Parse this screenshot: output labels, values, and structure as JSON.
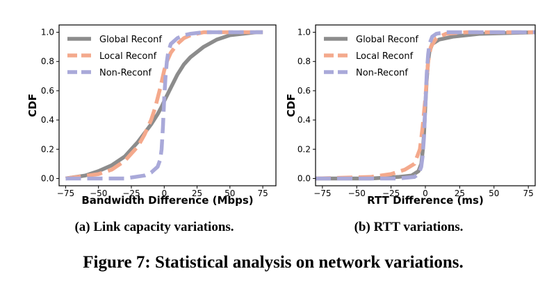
{
  "figure_caption": "Figure 7: Statistical analysis on network variations.",
  "chart_data": [
    {
      "type": "line",
      "subcaption": "(a) Link capacity variations.",
      "xlabel": "Bandwidth Difference (Mbps)",
      "ylabel": "CDF",
      "xlim": [
        -80,
        85
      ],
      "ylim": [
        -0.05,
        1.05
      ],
      "xticks": [
        -75,
        -50,
        -25,
        0,
        25,
        50,
        75
      ],
      "yticks": [
        0.0,
        0.2,
        0.4,
        0.6,
        0.8,
        1.0
      ],
      "legend_position": "upper-left",
      "series": [
        {
          "name": "Global Reconf",
          "color": "#8c8c8c",
          "dash": "solid",
          "x": [
            -75,
            -60,
            -50,
            -40,
            -30,
            -20,
            -15,
            -10,
            -5,
            -2,
            0,
            5,
            10,
            15,
            20,
            30,
            40,
            50,
            60,
            70,
            75
          ],
          "y": [
            0.0,
            0.02,
            0.05,
            0.09,
            0.15,
            0.25,
            0.31,
            0.37,
            0.44,
            0.49,
            0.53,
            0.62,
            0.71,
            0.78,
            0.83,
            0.9,
            0.95,
            0.98,
            0.99,
            1.0,
            1.0
          ]
        },
        {
          "name": "Local Reconf",
          "color": "#f4a98c",
          "dash": "dashed",
          "x": [
            -75,
            -50,
            -40,
            -30,
            -20,
            -15,
            -10,
            -7,
            -5,
            -3,
            -2,
            0,
            2,
            5,
            10,
            15,
            20,
            30,
            40,
            75
          ],
          "y": [
            0.0,
            0.03,
            0.06,
            0.12,
            0.22,
            0.3,
            0.4,
            0.48,
            0.55,
            0.62,
            0.66,
            0.74,
            0.8,
            0.86,
            0.92,
            0.96,
            0.98,
            1.0,
            1.0,
            1.0
          ]
        },
        {
          "name": "Non-Reconf",
          "color": "#a9a9d9",
          "dash": "dashed",
          "x": [
            -75,
            -30,
            -15,
            -10,
            -5,
            -3,
            -2,
            -1,
            0,
            1,
            2,
            3,
            5,
            10,
            15,
            20,
            30,
            75
          ],
          "y": [
            0.0,
            0.0,
            0.02,
            0.04,
            0.08,
            0.13,
            0.2,
            0.35,
            0.55,
            0.7,
            0.8,
            0.86,
            0.92,
            0.96,
            0.98,
            0.99,
            1.0,
            1.0
          ]
        }
      ]
    },
    {
      "type": "line",
      "subcaption": "(b) RTT variations.",
      "xlabel": "RTT Difference (ms)",
      "ylabel": "CDF",
      "xlim": [
        -80,
        80
      ],
      "ylim": [
        -0.05,
        1.05
      ],
      "xticks": [
        -75,
        -50,
        -25,
        0,
        25,
        50,
        75
      ],
      "yticks": [
        0.0,
        0.2,
        0.4,
        0.6,
        0.8,
        1.0
      ],
      "legend_position": "upper-left",
      "series": [
        {
          "name": "Global Reconf",
          "color": "#8c8c8c",
          "dash": "solid",
          "x": [
            -80,
            -40,
            -20,
            -10,
            -5,
            -3,
            -2,
            -1,
            0,
            1,
            2,
            3,
            5,
            10,
            20,
            40,
            80
          ],
          "y": [
            0.0,
            0.0,
            0.01,
            0.02,
            0.05,
            0.1,
            0.18,
            0.3,
            0.5,
            0.68,
            0.8,
            0.87,
            0.92,
            0.95,
            0.97,
            0.99,
            1.0
          ]
        },
        {
          "name": "Local Reconf",
          "color": "#f4a98c",
          "dash": "dashed",
          "x": [
            -80,
            -40,
            -25,
            -15,
            -8,
            -4,
            -2,
            -1,
            0,
            1,
            2,
            4,
            8,
            15,
            30,
            80
          ],
          "y": [
            0.0,
            0.01,
            0.03,
            0.06,
            0.1,
            0.2,
            0.35,
            0.45,
            0.55,
            0.68,
            0.8,
            0.9,
            0.96,
            0.99,
            1.0,
            1.0
          ]
        },
        {
          "name": "Non-Reconf",
          "color": "#a9a9d9",
          "dash": "dashed",
          "x": [
            -80,
            -20,
            -8,
            -5,
            -3,
            -2,
            -1,
            0,
            1,
            2,
            3,
            5,
            8,
            15,
            30,
            80
          ],
          "y": [
            0.0,
            0.0,
            0.01,
            0.03,
            0.08,
            0.15,
            0.28,
            0.5,
            0.72,
            0.85,
            0.92,
            0.97,
            0.99,
            1.0,
            1.0,
            1.0
          ]
        }
      ]
    }
  ]
}
